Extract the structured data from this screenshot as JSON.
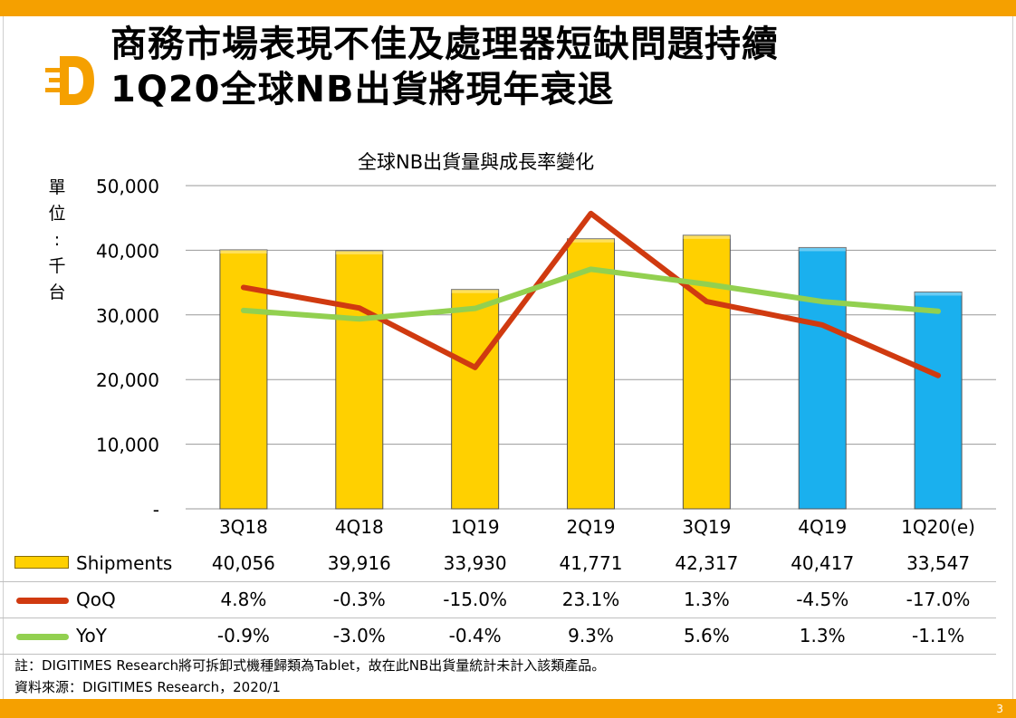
{
  "title": {
    "line1": "商務市場表現不佳及處理器短缺問題持續",
    "line2": "1Q20全球NB出貨將現年衰退"
  },
  "page_number": "3",
  "colors": {
    "brand": "#f5a000",
    "bar_actual": "#ffd000",
    "bar_estimate": "#1ab0ee",
    "qoq": "#d03a10",
    "yoy": "#92d050"
  },
  "chart_data": {
    "type": "bar",
    "title": "全球NB出貨量與成長率變化",
    "ylabel": "單位：千台",
    "ylim": [
      0,
      50000
    ],
    "yticks": [
      "-",
      "10,000",
      "20,000",
      "30,000",
      "40,000",
      "50,000"
    ],
    "categories": [
      "3Q18",
      "4Q18",
      "1Q19",
      "2Q19",
      "3Q19",
      "4Q19",
      "1Q20(e)"
    ],
    "series": [
      {
        "name": "Shipments",
        "kind": "bar",
        "values": [
          40056,
          39916,
          33930,
          41771,
          42317,
          40417,
          33547
        ],
        "display": [
          "40,056",
          "39,916",
          "33,930",
          "41,771",
          "42,317",
          "40,417",
          "33,547"
        ]
      },
      {
        "name": "QoQ",
        "kind": "line",
        "values": [
          4.8,
          -0.3,
          -15.0,
          23.1,
          1.3,
          -4.5,
          -17.0
        ],
        "display": [
          "4.8%",
          "-0.3%",
          "-15.0%",
          "23.1%",
          "1.3%",
          "-4.5%",
          "-17.0%"
        ]
      },
      {
        "name": "YoY",
        "kind": "line",
        "values": [
          -0.9,
          -3.0,
          -0.4,
          9.3,
          5.6,
          1.3,
          -1.1
        ],
        "display": [
          "-0.9%",
          "-3.0%",
          "-0.4%",
          "9.3%",
          "5.6%",
          "1.3%",
          "-1.1%"
        ]
      }
    ],
    "grid": true,
    "legend": "table-below"
  },
  "footnotes": {
    "note": "註：DIGITIMES Research將可拆卸式機種歸類為Tablet，故在此NB出貨量統計未計入該類產品。",
    "source": "資料來源：DIGITIMES Research，2020/1"
  }
}
